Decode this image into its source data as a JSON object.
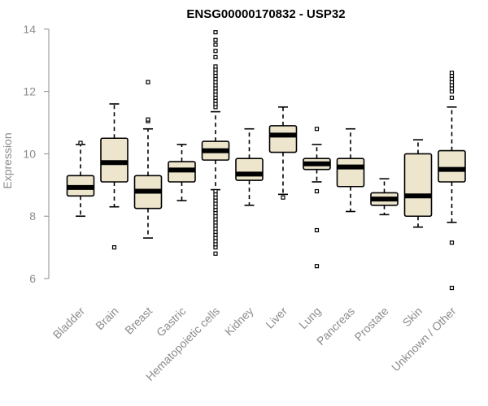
{
  "chart_data": {
    "type": "boxplot",
    "title": "ENSG00000170832 - USP32",
    "xlabel": "",
    "ylabel": "Expression",
    "ylim": [
      5.35,
      14.1
    ],
    "yticks": [
      6,
      8,
      10,
      12,
      14
    ],
    "categories": [
      "Bladder",
      "Brain",
      "Breast",
      "Gastric",
      "Hematopoietic cells",
      "Kidney",
      "Liver",
      "Lung",
      "Pancreas",
      "Prostate",
      "Skin",
      "Unknown / Other"
    ],
    "boxes": [
      {
        "name": "Bladder",
        "whisker_low": 8.0,
        "q1": 8.65,
        "median": 8.92,
        "q3": 9.3,
        "whisker_high": 10.3,
        "outliers": [
          10.35
        ]
      },
      {
        "name": "Brain",
        "whisker_low": 8.3,
        "q1": 9.1,
        "median": 9.72,
        "q3": 10.5,
        "whisker_high": 11.6,
        "outliers": [
          7.0
        ]
      },
      {
        "name": "Breast",
        "whisker_low": 7.3,
        "q1": 8.25,
        "median": 8.8,
        "q3": 9.3,
        "whisker_high": 10.8,
        "outliers": [
          11.05,
          11.1,
          12.3
        ]
      },
      {
        "name": "Gastric",
        "whisker_low": 8.5,
        "q1": 9.1,
        "median": 9.48,
        "q3": 9.75,
        "whisker_high": 10.3,
        "outliers": []
      },
      {
        "name": "Hematopoietic cells",
        "whisker_low": 8.85,
        "q1": 9.8,
        "median": 10.1,
        "q3": 10.4,
        "whisker_high": 11.35,
        "outliers": [
          6.8,
          7.0,
          7.1,
          7.2,
          7.3,
          7.4,
          7.5,
          7.6,
          7.7,
          7.8,
          7.9,
          8.0,
          8.1,
          8.2,
          8.3,
          8.4,
          8.5,
          8.6,
          8.7,
          8.8,
          11.5,
          11.6,
          11.7,
          11.8,
          11.9,
          12.0,
          12.1,
          12.2,
          12.3,
          12.4,
          12.5,
          12.6,
          12.7,
          12.8,
          13.1,
          13.3,
          13.5,
          13.65,
          13.9
        ]
      },
      {
        "name": "Kidney",
        "whisker_low": 8.35,
        "q1": 9.15,
        "median": 9.35,
        "q3": 9.85,
        "whisker_high": 10.8,
        "outliers": []
      },
      {
        "name": "Liver",
        "whisker_low": 8.7,
        "q1": 10.05,
        "median": 10.6,
        "q3": 10.9,
        "whisker_high": 11.5,
        "outliers": [
          8.6
        ]
      },
      {
        "name": "Lung",
        "whisker_low": 9.1,
        "q1": 9.5,
        "median": 9.68,
        "q3": 9.85,
        "whisker_high": 10.3,
        "outliers": [
          6.4,
          7.55,
          8.8,
          10.8
        ]
      },
      {
        "name": "Pancreas",
        "whisker_low": 8.15,
        "q1": 8.95,
        "median": 9.58,
        "q3": 9.85,
        "whisker_high": 10.8,
        "outliers": []
      },
      {
        "name": "Prostate",
        "whisker_low": 8.05,
        "q1": 8.35,
        "median": 8.55,
        "q3": 8.75,
        "whisker_high": 9.2,
        "outliers": []
      },
      {
        "name": "Skin",
        "whisker_low": 7.65,
        "q1": 8.0,
        "median": 8.65,
        "q3": 10.0,
        "whisker_high": 10.45,
        "outliers": []
      },
      {
        "name": "Unknown / Other",
        "whisker_low": 7.8,
        "q1": 9.1,
        "median": 9.5,
        "q3": 10.1,
        "whisker_high": 11.5,
        "outliers": [
          5.7,
          7.15,
          11.8,
          12.0,
          12.1,
          12.2,
          12.3,
          12.4,
          12.5,
          12.6
        ]
      }
    ],
    "colors": {
      "box_fill": "#ede6cd",
      "box_stroke": "#000000",
      "median": "#000000",
      "axis": "#8c8c8c",
      "title": "#000000"
    },
    "grid": false,
    "legend": "none"
  }
}
